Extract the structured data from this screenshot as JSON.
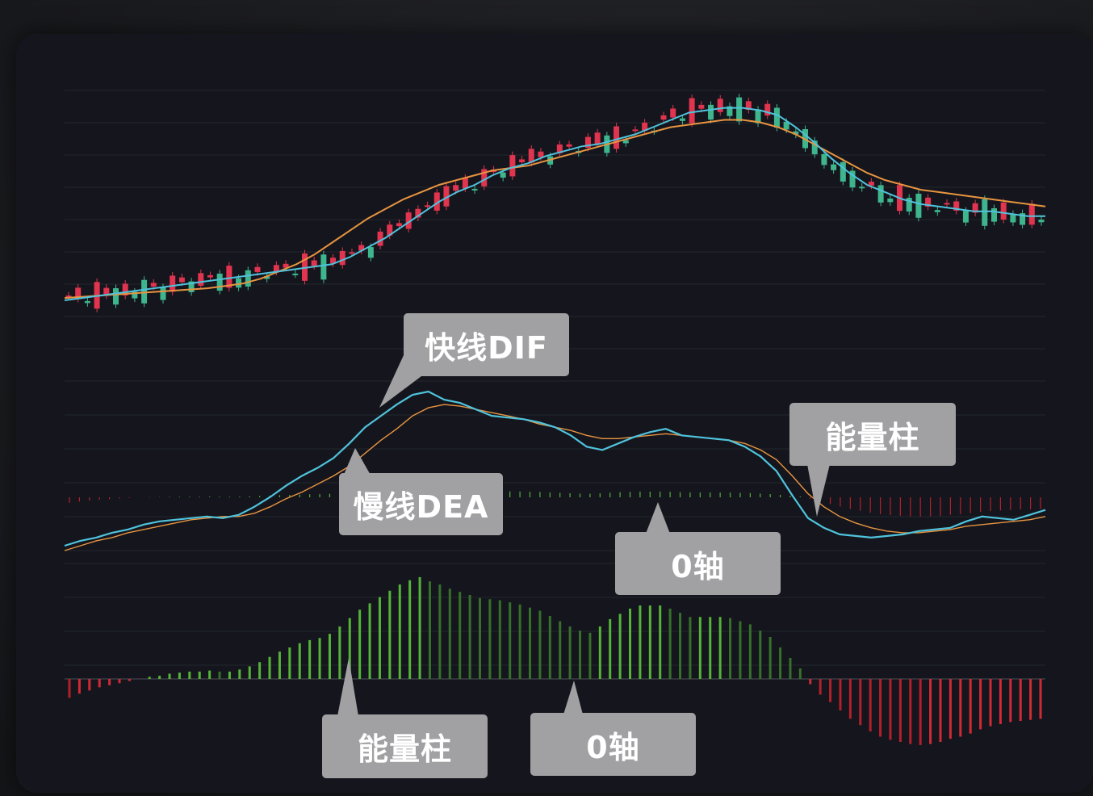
{
  "chart_data": [
    {
      "type": "candlestick",
      "title": "",
      "series": [
        {
          "values": [
            0.02,
            0.03,
            0.04,
            0.05,
            0.06,
            0.07,
            0.08,
            0.09,
            0.1,
            0.11,
            0.12,
            0.13,
            0.14,
            0.15,
            0.16,
            0.17,
            0.2,
            0.24,
            0.28,
            0.33,
            0.38,
            0.43,
            0.47,
            0.5,
            0.54,
            0.57,
            0.59,
            0.62,
            0.64,
            0.66,
            0.67,
            0.69,
            0.71,
            0.74,
            0.77,
            0.8,
            0.81,
            0.82,
            0.82,
            0.81,
            0.79,
            0.74,
            0.68,
            0.61,
            0.55,
            0.5,
            0.47,
            0.44,
            0.42,
            0.41,
            0.4,
            0.39,
            0.39,
            0.38,
            0.37,
            0.37
          ]
        },
        {
          "values": [
            0.03,
            0.035,
            0.04,
            0.045,
            0.05,
            0.055,
            0.06,
            0.065,
            0.07,
            0.08,
            0.09,
            0.11,
            0.14,
            0.17,
            0.21,
            0.26,
            0.31,
            0.36,
            0.4,
            0.44,
            0.47,
            0.5,
            0.52,
            0.54,
            0.56,
            0.57,
            0.58,
            0.6,
            0.62,
            0.64,
            0.66,
            0.68,
            0.7,
            0.72,
            0.74,
            0.75,
            0.76,
            0.77,
            0.77,
            0.76,
            0.74,
            0.71,
            0.67,
            0.63,
            0.59,
            0.55,
            0.52,
            0.5,
            0.48,
            0.47,
            0.46,
            0.45,
            0.44,
            0.43,
            0.42,
            0.41
          ]
        }
      ]
    },
    {
      "type": "line",
      "title": "",
      "series": [
        {
          "values": [
            0.05,
            0.08,
            0.1,
            0.13,
            0.15,
            0.18,
            0.2,
            0.21,
            0.22,
            0.23,
            0.22,
            0.24,
            0.29,
            0.35,
            0.42,
            0.48,
            0.53,
            0.59,
            0.68,
            0.78,
            0.85,
            0.92,
            0.98,
            1.0,
            0.95,
            0.93,
            0.89,
            0.85,
            0.84,
            0.83,
            0.81,
            0.78,
            0.73,
            0.66,
            0.64,
            0.68,
            0.72,
            0.75,
            0.77,
            0.73,
            0.72,
            0.71,
            0.7,
            0.66,
            0.6,
            0.51,
            0.36,
            0.22,
            0.16,
            0.12,
            0.11,
            0.1,
            0.11,
            0.12,
            0.14,
            0.15,
            0.16,
            0.2,
            0.23,
            0.22,
            0.21,
            0.24,
            0.27
          ]
        },
        {
          "values": [
            0.02,
            0.05,
            0.08,
            0.1,
            0.13,
            0.15,
            0.17,
            0.19,
            0.21,
            0.22,
            0.23,
            0.23,
            0.25,
            0.29,
            0.34,
            0.38,
            0.43,
            0.48,
            0.54,
            0.62,
            0.7,
            0.77,
            0.85,
            0.9,
            0.92,
            0.91,
            0.89,
            0.87,
            0.85,
            0.83,
            0.8,
            0.78,
            0.76,
            0.73,
            0.71,
            0.71,
            0.72,
            0.73,
            0.74,
            0.73,
            0.72,
            0.71,
            0.7,
            0.68,
            0.64,
            0.58,
            0.48,
            0.37,
            0.29,
            0.23,
            0.19,
            0.16,
            0.14,
            0.13,
            0.13,
            0.14,
            0.15,
            0.17,
            0.18,
            0.19,
            0.2,
            0.21,
            0.23
          ]
        }
      ]
    },
    {
      "type": "bar",
      "title": "",
      "values": [
        -0.18,
        -0.14,
        -0.11,
        -0.08,
        -0.06,
        -0.04,
        -0.02,
        0.0,
        0.02,
        0.03,
        0.05,
        0.06,
        0.07,
        0.07,
        0.08,
        0.07,
        0.07,
        0.09,
        0.12,
        0.16,
        0.21,
        0.26,
        0.3,
        0.34,
        0.37,
        0.39,
        0.43,
        0.5,
        0.58,
        0.66,
        0.72,
        0.78,
        0.84,
        0.9,
        0.94,
        0.97,
        0.93,
        0.9,
        0.86,
        0.83,
        0.8,
        0.77,
        0.76,
        0.75,
        0.73,
        0.71,
        0.68,
        0.65,
        0.6,
        0.55,
        0.5,
        0.46,
        0.44,
        0.5,
        0.57,
        0.62,
        0.67,
        0.7,
        0.7,
        0.7,
        0.67,
        0.63,
        0.59,
        0.59,
        0.59,
        0.59,
        0.58,
        0.55,
        0.52,
        0.46,
        0.4,
        0.3,
        0.2,
        0.1,
        -0.05,
        -0.15,
        -0.22,
        -0.3,
        -0.38,
        -0.44,
        -0.5,
        -0.55,
        -0.58,
        -0.6,
        -0.62,
        -0.63,
        -0.62,
        -0.6,
        -0.57,
        -0.55,
        -0.52,
        -0.48,
        -0.45,
        -0.43,
        -0.41,
        -0.4,
        -0.39,
        -0.38
      ]
    }
  ],
  "callouts": {
    "dif": "快线DIF",
    "dea": "慢线DEA",
    "bar_top": "能量柱",
    "zero_top": "0轴",
    "bar_bottom": "能量柱",
    "zero_bottom": "0轴"
  },
  "colors": {
    "up": "#e0344f",
    "down": "#3fb58e",
    "dif_line": "#4fc3dc",
    "dea_line": "#e89440",
    "bar_positive": "#55b33a",
    "bar_negative": "#b2202c",
    "callout_bg": "#a1a1a3"
  }
}
